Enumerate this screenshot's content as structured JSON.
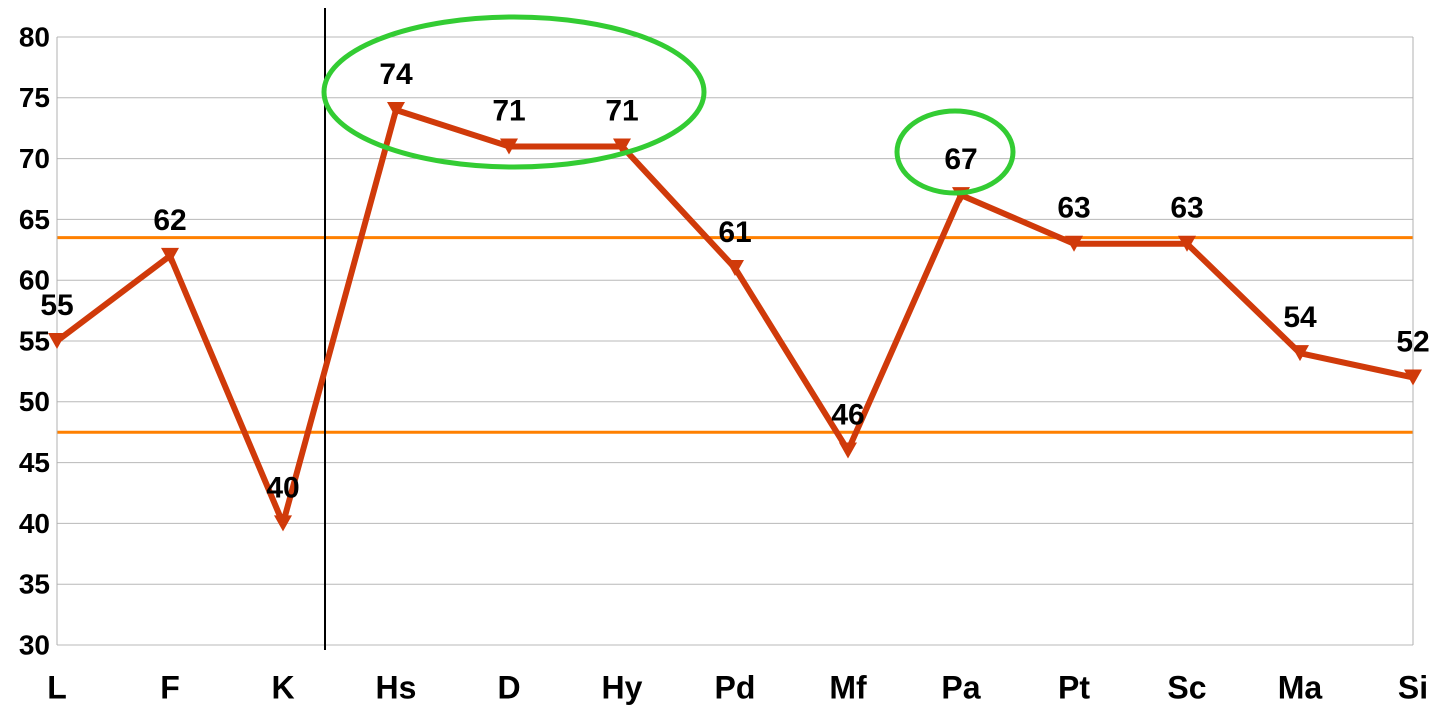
{
  "chart_data": {
    "type": "line",
    "categories": [
      "L",
      "F",
      "K",
      "Hs",
      "D",
      "Hy",
      "Pd",
      "Mf",
      "Pa",
      "Pt",
      "Sc",
      "Ma",
      "Si"
    ],
    "values": [
      55,
      62,
      40,
      74,
      71,
      71,
      61,
      46,
      67,
      63,
      63,
      54,
      52
    ],
    "color": "#d03a0a",
    "reference_lines": [
      63.5,
      47.5
    ],
    "reference_color": "#ff8000",
    "ylim": [
      30,
      80
    ],
    "yticks": [
      30,
      35,
      40,
      45,
      50,
      55,
      60,
      65,
      70,
      75,
      80
    ],
    "grid": true
  }
}
